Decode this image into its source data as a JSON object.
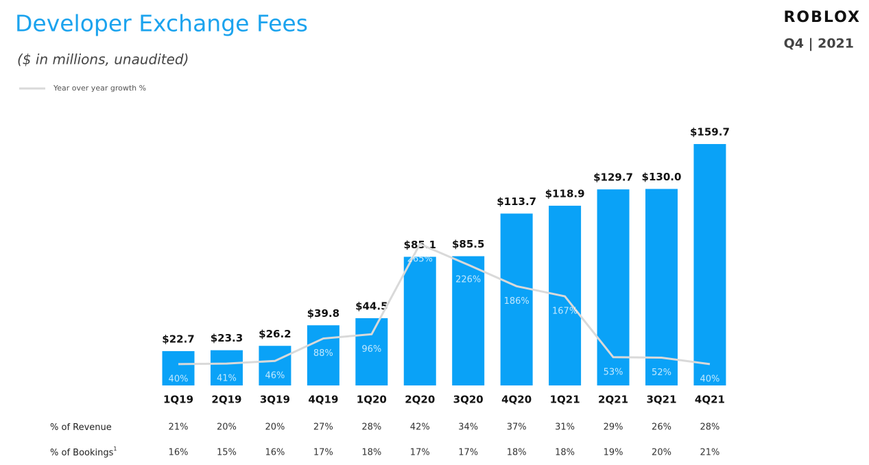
{
  "header": {
    "title": "Developer Exchange Fees",
    "subtitle": "($ in millions,  unaudited)",
    "logo": "ROBLOX",
    "period": "Q4 | 2021"
  },
  "chart_data": {
    "type": "bar",
    "categories": [
      "1Q19",
      "2Q19",
      "3Q19",
      "4Q19",
      "1Q20",
      "2Q20",
      "3Q20",
      "4Q20",
      "1Q21",
      "2Q21",
      "3Q21",
      "4Q21"
    ],
    "values": [
      22.7,
      23.3,
      26.2,
      39.8,
      44.5,
      85.1,
      85.5,
      113.7,
      118.9,
      129.7,
      130.0,
      159.7
    ],
    "value_labels": [
      "$22.7",
      "$23.3",
      "$26.2",
      "$39.8",
      "$44.5",
      "$85.1",
      "$85.5",
      "$113.7",
      "$118.9",
      "$129.7",
      "$130.0",
      "$159.7"
    ],
    "color": "#0aa2f7",
    "line": {
      "name": "Year over year growth %",
      "color": "#d9d9d9",
      "values": [
        40,
        41,
        46,
        88,
        96,
        265,
        226,
        186,
        167,
        53,
        52,
        40
      ],
      "value_labels": [
        "40%",
        "41%",
        "46%",
        "88%",
        "96%",
        "265%",
        "226%",
        "186%",
        "167%",
        "53%",
        "52%",
        "40%"
      ]
    }
  },
  "table": {
    "rows": [
      {
        "label": "% of Revenue",
        "cells": [
          "21%",
          "20%",
          "20%",
          "27%",
          "28%",
          "42%",
          "34%",
          "37%",
          "31%",
          "29%",
          "26%",
          "28%"
        ]
      },
      {
        "label": "% of Bookings",
        "footnote": "1",
        "cells": [
          "16%",
          "15%",
          "16%",
          "17%",
          "18%",
          "17%",
          "17%",
          "18%",
          "18%",
          "19%",
          "20%",
          "21%"
        ]
      }
    ]
  }
}
